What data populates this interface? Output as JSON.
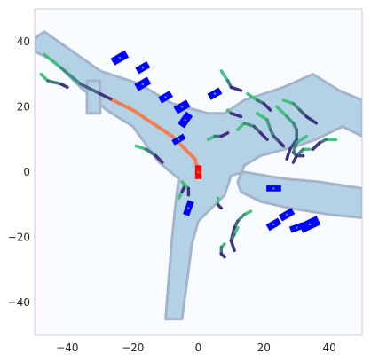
{
  "chart_data": {
    "type": "scatter",
    "title": "",
    "xlabel": "",
    "ylabel": "",
    "xlim": [
      -50,
      50
    ],
    "ylim": [
      -50,
      50
    ],
    "xticks": [
      -40,
      -20,
      0,
      20,
      40
    ],
    "yticks": [
      40,
      20,
      0,
      -20,
      -40
    ],
    "grid": false,
    "colors": {
      "background": "#f8fbff",
      "road": "#b4d2e6",
      "road_edge": "#a4b4cc",
      "agent": "#0000ff",
      "ego": "#ff0000",
      "ego_path": "#f08050",
      "track_new": "#3dbf7a",
      "track_old": "#3b2a80"
    },
    "road_polygons": [
      [
        [
          -50,
          41
        ],
        [
          -47,
          43
        ],
        [
          -30,
          31
        ],
        [
          -18,
          27
        ],
        [
          -8,
          21
        ],
        [
          3,
          18
        ],
        [
          8,
          18
        ],
        [
          14,
          22
        ],
        [
          26,
          26
        ],
        [
          35,
          30
        ],
        [
          43,
          25
        ],
        [
          50,
          22
        ],
        [
          50,
          11
        ],
        [
          44,
          14
        ],
        [
          36,
          10
        ],
        [
          30,
          8
        ],
        [
          19,
          5
        ],
        [
          14,
          2
        ],
        [
          12,
          -3
        ],
        [
          13,
          -6
        ],
        [
          19,
          -9
        ],
        [
          28,
          -11
        ],
        [
          40,
          -13
        ],
        [
          50,
          -14
        ],
        [
          50,
          -5
        ],
        [
          37,
          -3
        ],
        [
          26,
          -2
        ],
        [
          14,
          0
        ],
        [
          10,
          -1
        ],
        [
          8,
          -7
        ],
        [
          4,
          -11
        ],
        [
          0,
          -15
        ],
        [
          -2,
          -22
        ],
        [
          -3,
          -30
        ],
        [
          -5,
          -45
        ],
        [
          -10,
          -45
        ],
        [
          -9,
          -32
        ],
        [
          -8,
          -20
        ],
        [
          -7,
          -10
        ],
        [
          -6,
          -2
        ],
        [
          -12,
          3
        ],
        [
          -20,
          14
        ],
        [
          -28,
          19
        ],
        [
          -36,
          26
        ],
        [
          -44,
          34
        ],
        [
          -50,
          37
        ]
      ],
      [
        [
          -34,
          18
        ],
        [
          -30,
          18
        ],
        [
          -30,
          28
        ],
        [
          -34,
          28
        ]
      ]
    ],
    "agents": [
      {
        "x": 23,
        "y": -5,
        "w": 4.5,
        "h": 1.8,
        "angle": 0
      },
      {
        "x": 27,
        "y": -13,
        "w": 4.5,
        "h": 2.2,
        "angle": -30
      },
      {
        "x": 23,
        "y": -16,
        "w": 4.2,
        "h": 2.2,
        "angle": -30
      },
      {
        "x": 34,
        "y": -16,
        "w": 6,
        "h": 3,
        "angle": -25
      },
      {
        "x": 30,
        "y": -17,
        "w": 4,
        "h": 2,
        "angle": -20
      },
      {
        "x": -3,
        "y": -11,
        "w": 2,
        "h": 4.5,
        "angle": 20
      },
      {
        "x": -24,
        "y": 35,
        "w": 5,
        "h": 2.5,
        "angle": -30
      },
      {
        "x": -17,
        "y": 32,
        "w": 4,
        "h": 2.2,
        "angle": -30
      },
      {
        "x": -17,
        "y": 27,
        "w": 4.5,
        "h": 2.5,
        "angle": -30
      },
      {
        "x": -10,
        "y": 23,
        "w": 4,
        "h": 2.2,
        "angle": -30
      },
      {
        "x": -5,
        "y": 20,
        "w": 4.5,
        "h": 2.5,
        "angle": -30
      },
      {
        "x": -4,
        "y": 16,
        "w": 2.5,
        "h": 4.5,
        "angle": 35
      },
      {
        "x": 5,
        "y": 24,
        "w": 4,
        "h": 2.2,
        "angle": -30
      },
      {
        "x": -6,
        "y": 10,
        "w": 4,
        "h": 1.8,
        "angle": -30
      }
    ],
    "ego": {
      "x": 0,
      "y": 0,
      "w": 2,
      "h": 4.2,
      "angle": 0
    },
    "ego_path": [
      [
        -26,
        22
      ],
      [
        -20,
        19
      ],
      [
        -14,
        15
      ],
      [
        -8,
        11
      ],
      [
        -4,
        7
      ],
      [
        -1,
        4
      ],
      [
        0,
        0
      ]
    ],
    "tracks": [
      [
        [
          -47,
          36
        ],
        [
          -42,
          32
        ],
        [
          -36,
          27
        ],
        [
          -30,
          24
        ],
        [
          -26,
          22
        ]
      ],
      [
        [
          -48,
          30
        ],
        [
          -46,
          28
        ],
        [
          -42,
          27
        ],
        [
          -40,
          26
        ]
      ],
      [
        [
          -19,
          8
        ],
        [
          -16,
          7
        ],
        [
          -13,
          5
        ],
        [
          -11,
          3
        ]
      ],
      [
        [
          -6,
          -8
        ],
        [
          -5,
          -6
        ],
        [
          -4,
          -4
        ]
      ],
      [
        [
          7,
          31
        ],
        [
          9,
          28
        ],
        [
          10,
          26
        ],
        [
          13,
          25
        ]
      ],
      [
        [
          15,
          24
        ],
        [
          18,
          22
        ],
        [
          20,
          21
        ],
        [
          22,
          19
        ]
      ],
      [
        [
          18,
          18
        ],
        [
          21,
          16
        ],
        [
          22,
          13
        ],
        [
          23,
          11
        ],
        [
          25,
          9
        ],
        [
          26,
          8
        ]
      ],
      [
        [
          9,
          19
        ],
        [
          10,
          18
        ],
        [
          13,
          17
        ]
      ],
      [
        [
          12,
          13
        ],
        [
          14,
          15
        ],
        [
          17,
          14
        ],
        [
          19,
          12
        ],
        [
          21,
          10
        ]
      ],
      [
        [
          24,
          20
        ],
        [
          27,
          17
        ],
        [
          29,
          15
        ],
        [
          30,
          13
        ],
        [
          30,
          10
        ],
        [
          28,
          7
        ],
        [
          27,
          4
        ]
      ],
      [
        [
          26,
          22
        ],
        [
          29,
          21
        ],
        [
          31,
          19
        ],
        [
          33,
          17
        ],
        [
          36,
          15
        ]
      ],
      [
        [
          33,
          11
        ],
        [
          30,
          9
        ],
        [
          29,
          6
        ],
        [
          30,
          5
        ],
        [
          32,
          5
        ]
      ],
      [
        [
          42,
          10
        ],
        [
          39,
          10
        ],
        [
          37,
          9
        ],
        [
          35,
          7
        ]
      ],
      [
        [
          34,
          7
        ],
        [
          32,
          7
        ],
        [
          30,
          5
        ],
        [
          29,
          3
        ]
      ],
      [
        [
          3,
          10
        ],
        [
          5,
          11
        ],
        [
          7,
          11
        ],
        [
          9,
          12
        ]
      ],
      [
        [
          16,
          -12
        ],
        [
          14,
          -13
        ],
        [
          12,
          -15
        ],
        [
          11,
          -17
        ],
        [
          10,
          -21
        ]
      ],
      [
        [
          12,
          -17
        ],
        [
          11,
          -19
        ],
        [
          10,
          -21
        ],
        [
          11,
          -24
        ]
      ],
      [
        [
          8,
          -22
        ],
        [
          7,
          -23
        ],
        [
          7,
          -25
        ],
        [
          8,
          -26
        ]
      ],
      [
        [
          6,
          -8
        ],
        [
          6,
          -10
        ],
        [
          7,
          -11
        ]
      ],
      [
        [
          -5,
          -3
        ],
        [
          -3,
          -5
        ],
        [
          -3,
          -7
        ]
      ]
    ]
  }
}
